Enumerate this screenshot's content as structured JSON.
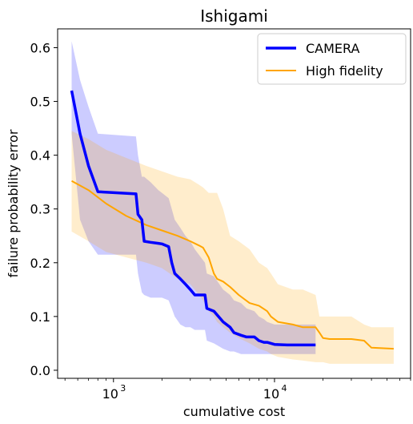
{
  "chart_data": {
    "type": "line",
    "title": "Ishigami",
    "xlabel": "cumulative cost",
    "ylabel": "failure probability error",
    "xscale": "log",
    "xlim": [
      450,
      70000
    ],
    "ylim": [
      -0.015,
      0.635
    ],
    "yticks": [
      0.0,
      0.1,
      0.2,
      0.3,
      0.4,
      0.5,
      0.6
    ],
    "ytick_labels": [
      "0.0",
      "0.1",
      "0.2",
      "0.3",
      "0.4",
      "0.5",
      "0.6"
    ],
    "xticks": [
      1000,
      10000
    ],
    "xtick_labels": [
      {
        "base": "10",
        "exp": "3"
      },
      {
        "base": "10",
        "exp": "4"
      }
    ],
    "grid": false,
    "legend_position": "top-right",
    "series": [
      {
        "name": "CAMERA",
        "color": "#0000ff",
        "band_color": "#0000ff",
        "line_width": 3.5,
        "x": [
          550,
          620,
          700,
          800,
          1380,
          1420,
          1500,
          1550,
          1700,
          1900,
          2000,
          2200,
          2300,
          2400,
          2600,
          2800,
          3000,
          3200,
          3700,
          3800,
          4200,
          4800,
          5300,
          5600,
          6200,
          6700,
          7500,
          8000,
          8600,
          9000,
          10000,
          12000,
          18000
        ],
        "y": [
          0.52,
          0.44,
          0.38,
          0.332,
          0.328,
          0.29,
          0.28,
          0.24,
          0.238,
          0.236,
          0.235,
          0.23,
          0.2,
          0.18,
          0.17,
          0.16,
          0.15,
          0.14,
          0.14,
          0.115,
          0.11,
          0.09,
          0.08,
          0.07,
          0.065,
          0.062,
          0.062,
          0.055,
          0.052,
          0.052,
          0.048,
          0.047,
          0.047
        ],
        "lower": [
          0.44,
          0.28,
          0.24,
          0.215,
          0.215,
          0.18,
          0.145,
          0.14,
          0.135,
          0.135,
          0.135,
          0.13,
          0.115,
          0.1,
          0.085,
          0.08,
          0.08,
          0.075,
          0.075,
          0.055,
          0.05,
          0.04,
          0.035,
          0.035,
          0.03,
          0.03,
          0.03,
          0.03,
          0.03,
          0.03,
          0.03,
          0.03,
          0.03
        ],
        "upper": [
          0.612,
          0.54,
          0.49,
          0.44,
          0.435,
          0.4,
          0.36,
          0.36,
          0.35,
          0.335,
          0.33,
          0.32,
          0.3,
          0.28,
          0.265,
          0.25,
          0.24,
          0.225,
          0.2,
          0.18,
          0.175,
          0.15,
          0.14,
          0.13,
          0.125,
          0.115,
          0.11,
          0.1,
          0.095,
          0.09,
          0.085,
          0.085,
          0.085
        ]
      },
      {
        "name": "High fidelity",
        "color": "#ffa500",
        "band_color": "#ffa500",
        "line_width": 2,
        "x": [
          550,
          700,
          900,
          1200,
          1600,
          2000,
          2500,
          3000,
          3400,
          3600,
          3900,
          4200,
          4400,
          4800,
          5300,
          6000,
          7000,
          8000,
          9000,
          9500,
          10500,
          13000,
          15000,
          18000,
          19000,
          20000,
          22000,
          26000,
          30000,
          36000,
          40000,
          55000
        ],
        "y": [
          0.352,
          0.335,
          0.31,
          0.287,
          0.27,
          0.26,
          0.25,
          0.24,
          0.232,
          0.228,
          0.21,
          0.18,
          0.17,
          0.165,
          0.155,
          0.14,
          0.125,
          0.12,
          0.11,
          0.1,
          0.09,
          0.085,
          0.08,
          0.08,
          0.07,
          0.06,
          0.058,
          0.058,
          0.058,
          0.055,
          0.042,
          0.04
        ],
        "lower": [
          0.258,
          0.24,
          0.22,
          0.21,
          0.2,
          0.19,
          0.17,
          0.16,
          0.14,
          0.13,
          0.11,
          0.1,
          0.09,
          0.08,
          0.07,
          0.06,
          0.05,
          0.04,
          0.035,
          0.03,
          0.025,
          0.02,
          0.018,
          0.015,
          0.015,
          0.015,
          0.012,
          0.012,
          0.012,
          0.012,
          0.012,
          0.012
        ],
        "upper": [
          0.445,
          0.43,
          0.41,
          0.395,
          0.38,
          0.37,
          0.36,
          0.355,
          0.345,
          0.34,
          0.33,
          0.33,
          0.33,
          0.3,
          0.25,
          0.24,
          0.225,
          0.2,
          0.19,
          0.18,
          0.16,
          0.15,
          0.15,
          0.14,
          0.1,
          0.1,
          0.1,
          0.1,
          0.1,
          0.085,
          0.08,
          0.08
        ]
      }
    ]
  }
}
